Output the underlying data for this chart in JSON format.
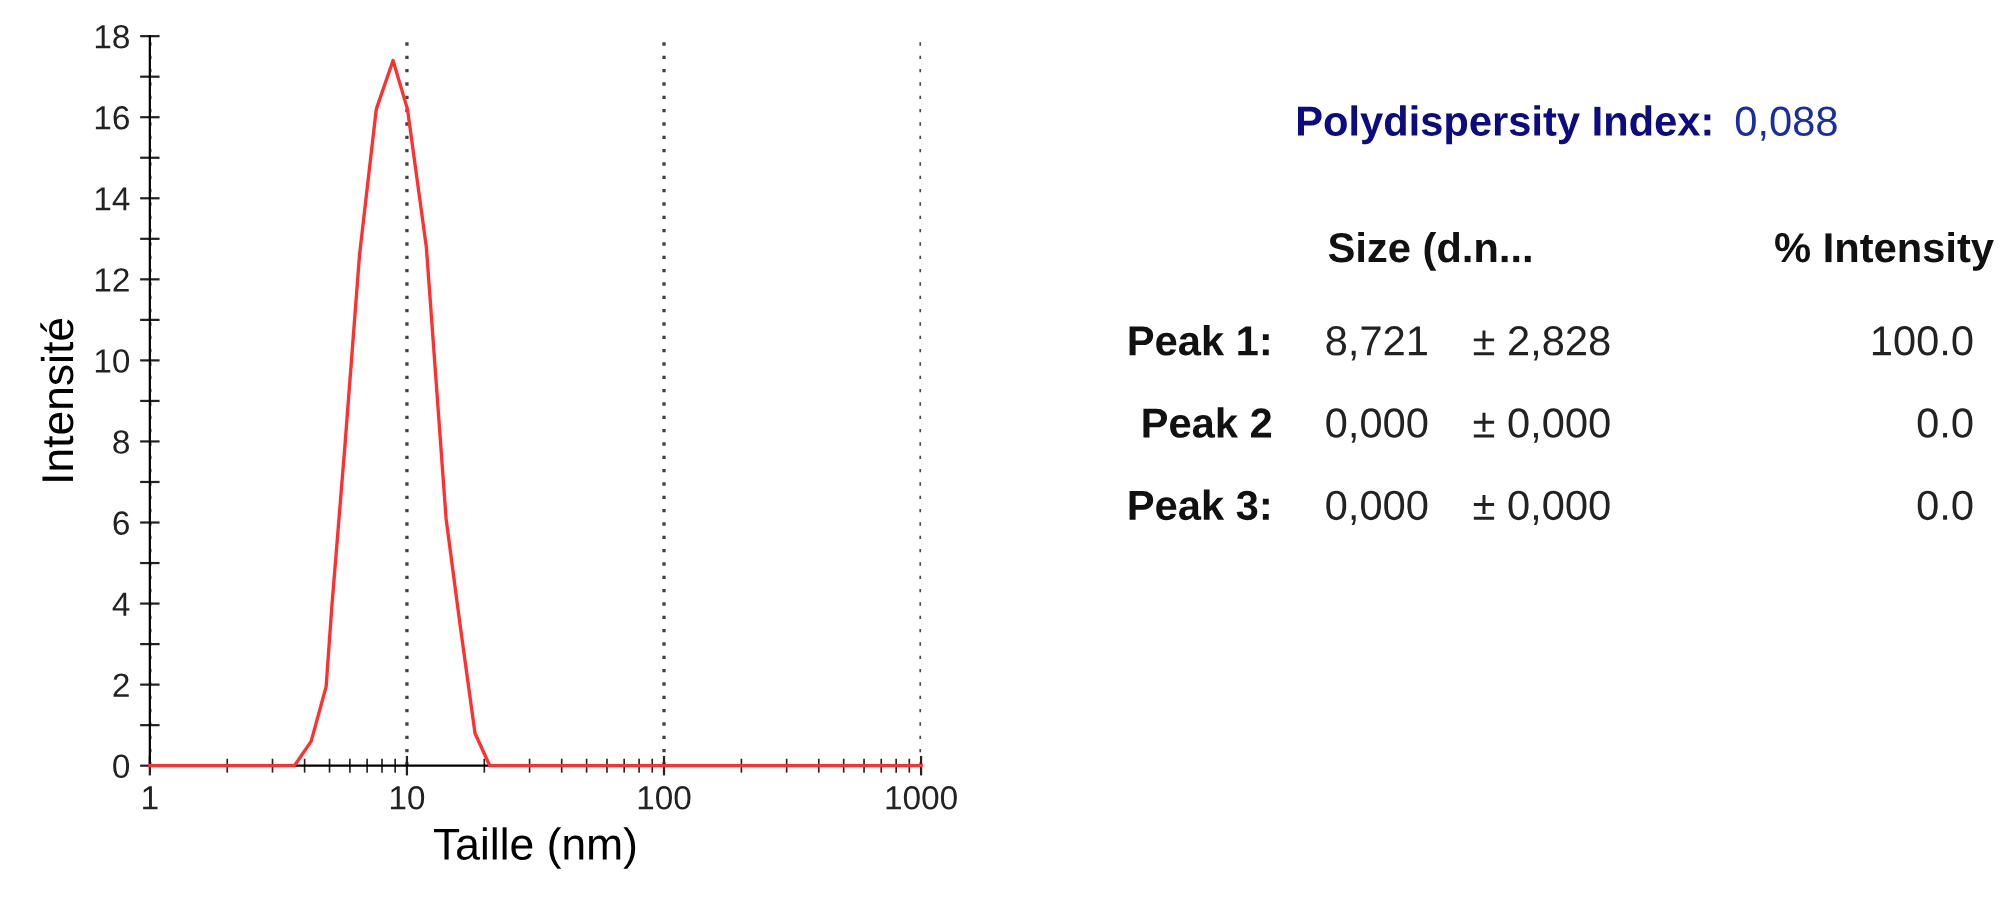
{
  "chart_data": [
    {
      "type": "line",
      "xlabel": "Taille (nm)",
      "ylabel": "Intensité",
      "log": "x",
      "xlim": [
        1,
        1000
      ],
      "xticks": [
        1,
        10,
        100,
        1000
      ],
      "ylim": [
        0,
        18
      ],
      "yticks": [
        0,
        {
          "value": 1,
          "label": null
        },
        2,
        {
          "value": 3,
          "label": null
        },
        4,
        {
          "value": 5,
          "label": null
        },
        6,
        {
          "value": 7,
          "label": null
        },
        8,
        {
          "value": 9,
          "label": null
        },
        10,
        {
          "value": 11,
          "label": null
        },
        12,
        {
          "value": 13,
          "label": null
        },
        14,
        {
          "value": 15,
          "label": null
        },
        16,
        {
          "value": 17,
          "label": null
        },
        18
      ],
      "grid": "x",
      "marker": "none",
      "line_style": "solid",
      "x": [
        1,
        3.65,
        4.24,
        4.85,
        5.1,
        5.74,
        6.54,
        7.6,
        8.83,
        10.05,
        11.9,
        14.2,
        16.0,
        18.4,
        21.0,
        1000
      ],
      "series": [
        {
          "color": "#ff3030",
          "values": [
            0,
            0,
            0.6,
            1.95,
            3.9,
            7.9,
            12.6,
            16.2,
            17.4,
            16.2,
            12.8,
            6.1,
            3.6,
            0.8,
            0,
            0
          ]
        }
      ]
    },
    {
      "type": "other",
      "annotations": [
        "Polydispersity Index:",
        "0,088",
        "Size (d.n...",
        "% Intensity",
        "Peak 1:",
        "8,721",
        "± 2,828",
        "100.0",
        "Peak 2",
        "0,000",
        "± 0,000",
        "0.0",
        "Peak 3:",
        "0,000",
        "± 0,000",
        "0.0"
      ]
    }
  ]
}
